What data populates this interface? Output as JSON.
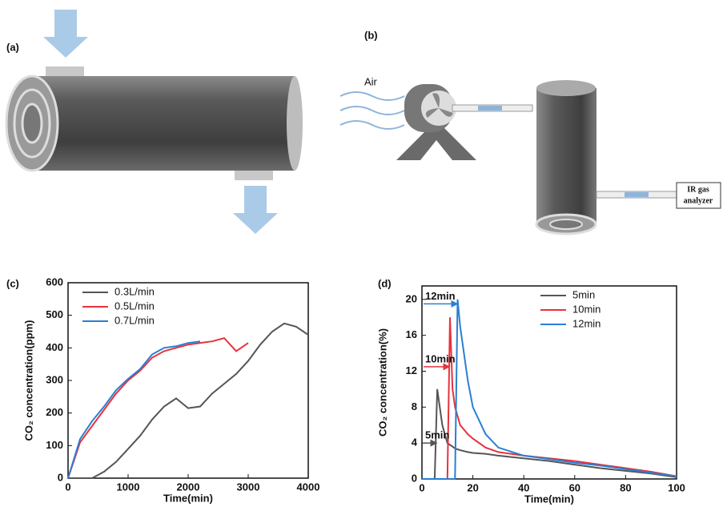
{
  "panels": {
    "a": "(a)",
    "b": "(b)",
    "c": "(c)",
    "d": "(d)"
  },
  "diagram_b": {
    "air": "Air",
    "analyzer": [
      "IR gas",
      "analyzer"
    ]
  },
  "chart_data": [
    {
      "type": "line",
      "xlabel": "Time(min)",
      "ylabel": "CO₂ concentration(ppm)",
      "x": [
        0,
        200,
        400,
        600,
        800,
        1000,
        1200,
        1400,
        1600,
        1800,
        2000,
        2200,
        2400,
        2600,
        2800,
        3000,
        3200,
        3400,
        3600,
        3800,
        4000
      ],
      "xlim": [
        0,
        4000
      ],
      "xticks": [
        0,
        1000,
        2000,
        3000,
        4000
      ],
      "ylim": [
        0,
        600
      ],
      "yticks": [
        0,
        100,
        200,
        300,
        400,
        500,
        600
      ],
      "legend": "upper-left",
      "series": [
        {
          "name": "0.3L/min",
          "color": "#555555",
          "values": [
            0,
            0,
            0,
            20,
            50,
            90,
            130,
            180,
            220,
            245,
            215,
            220,
            260,
            290,
            320,
            360,
            410,
            450,
            475,
            465,
            440
          ]
        },
        {
          "name": "0.5L/min",
          "color": "#e8323c",
          "values": [
            0,
            110,
            160,
            210,
            260,
            300,
            330,
            370,
            390,
            400,
            410,
            415,
            420,
            430,
            390,
            415,
            null,
            null,
            null,
            null,
            null
          ]
        },
        {
          "name": "0.7L/min",
          "color": "#2a7fd4",
          "values": [
            0,
            120,
            175,
            220,
            270,
            305,
            335,
            380,
            400,
            405,
            415,
            420,
            null,
            null,
            null,
            null,
            null,
            null,
            null,
            null,
            null
          ]
        }
      ]
    },
    {
      "type": "line",
      "xlabel": "Time(min)",
      "ylabel": "CO₂ concentration(%)",
      "x": [
        0,
        4,
        5,
        6,
        8,
        10,
        11,
        12,
        13,
        14,
        15,
        18,
        20,
        25,
        30,
        40,
        50,
        60,
        70,
        80,
        90,
        100
      ],
      "xlim": [
        0,
        100
      ],
      "xticks": [
        0,
        20,
        40,
        60,
        80,
        100
      ],
      "ylim": [
        0,
        21.5
      ],
      "yticks": [
        0,
        4,
        8,
        12,
        16,
        20
      ],
      "legend": "upper-right",
      "series": [
        {
          "name": "5min",
          "color": "#555555",
          "values": [
            0,
            0,
            0,
            10,
            6,
            4,
            3.8,
            3.6,
            3.4,
            3.3,
            3.2,
            3.0,
            2.9,
            2.8,
            2.6,
            2.3,
            2.0,
            1.6,
            1.2,
            0.9,
            0.6,
            0.2
          ]
        },
        {
          "name": "10min",
          "color": "#e8323c",
          "values": [
            0,
            0,
            0,
            0,
            0,
            0,
            18,
            10,
            8,
            7,
            6,
            5,
            4.5,
            3.5,
            3.0,
            2.6,
            2.3,
            2.0,
            1.6,
            1.2,
            0.8,
            0.3
          ]
        },
        {
          "name": "12min",
          "color": "#2a7fd4",
          "values": [
            0,
            0,
            0,
            0,
            0,
            0,
            0,
            0,
            0,
            20,
            17,
            11,
            8,
            5,
            3.5,
            2.6,
            2.2,
            1.8,
            1.5,
            1.1,
            0.7,
            0.3
          ]
        }
      ],
      "annotations": [
        {
          "text": "12min",
          "color": "#2a7fd4"
        },
        {
          "text": "10min",
          "color": "#e8323c"
        },
        {
          "text": "5min",
          "color": "#555555"
        }
      ]
    }
  ]
}
